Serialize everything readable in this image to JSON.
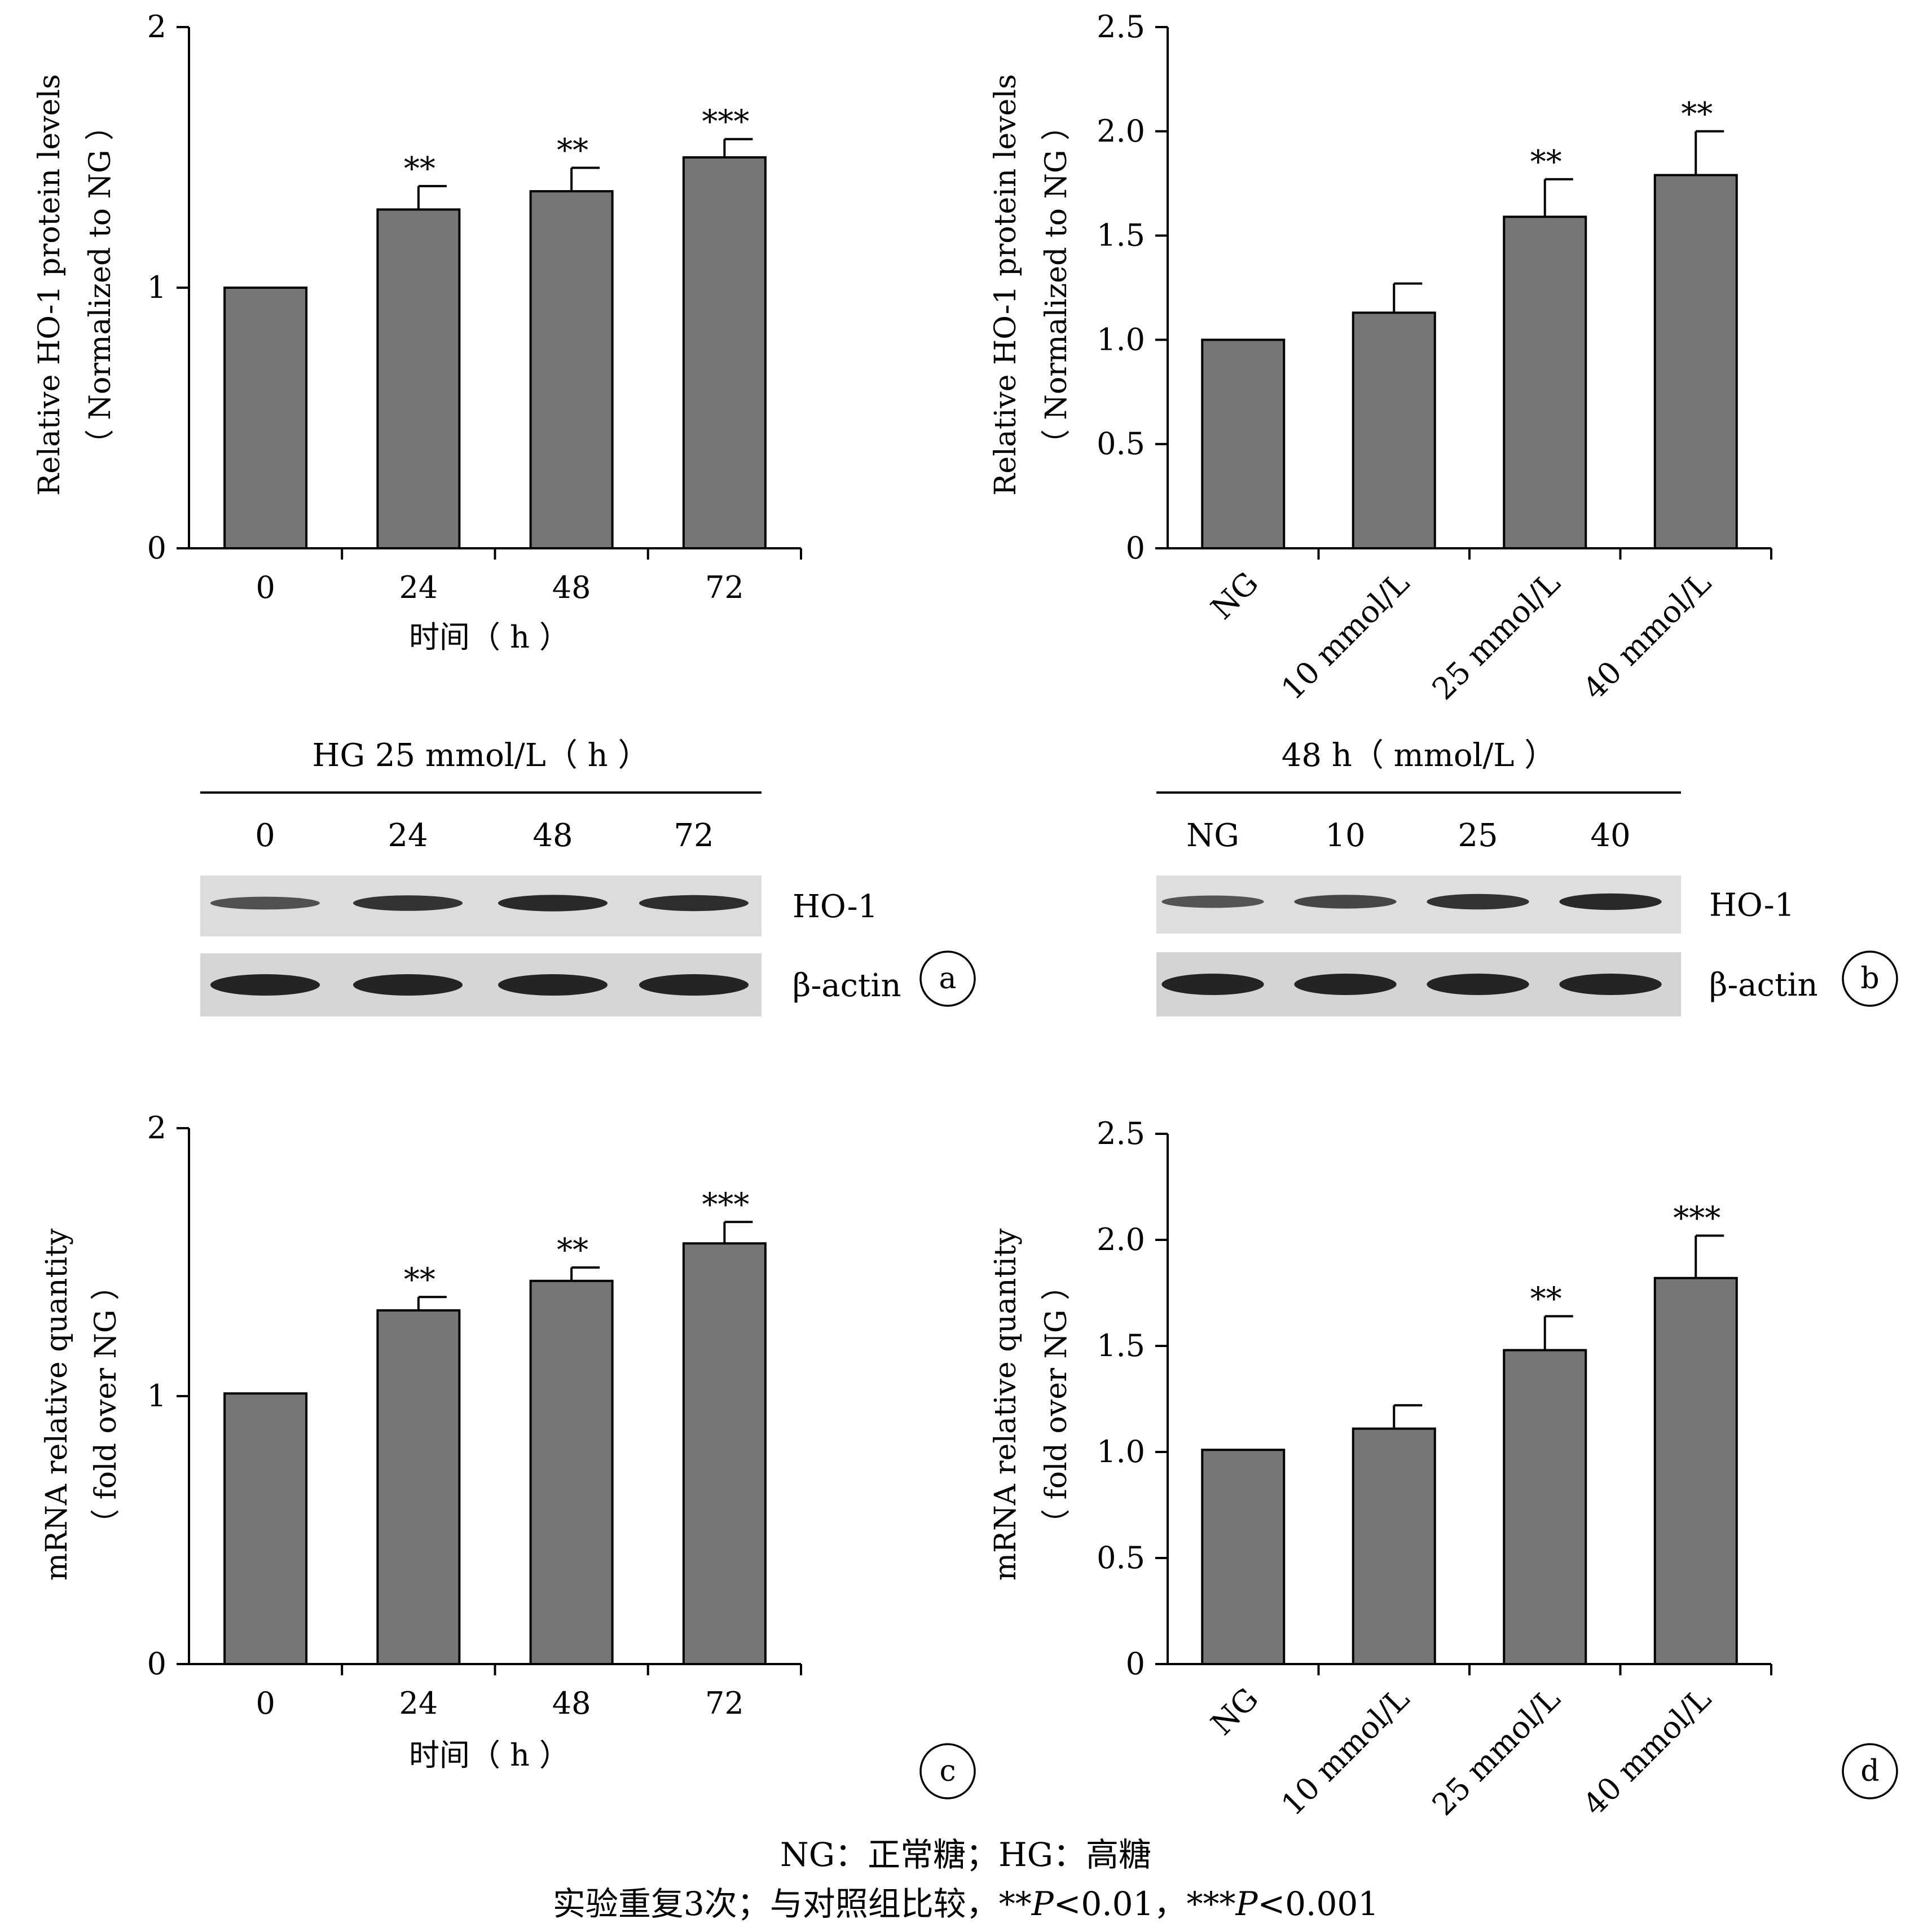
{
  "charts": [
    {
      "id": "a",
      "panel_label": "a",
      "type": "bar",
      "ylabel": [
        "Relative HO-1 protein levels",
        "（ Normalized to NG ）"
      ],
      "xlabel": "时间（ h ）",
      "categories": [
        "0",
        "24",
        "48",
        "72"
      ],
      "values": [
        1.0,
        1.3,
        1.37,
        1.5
      ],
      "errors": [
        0,
        0.09,
        0.09,
        0.07
      ],
      "stars": [
        "",
        "**",
        "**",
        "***"
      ],
      "ylim": [
        0,
        2
      ],
      "yticks": [
        "0",
        "1",
        "2"
      ],
      "ytick_values": [
        0,
        1,
        2
      ],
      "rotate_x": false
    },
    {
      "id": "b",
      "panel_label": "b",
      "type": "bar",
      "ylabel": [
        "Relative HO-1 protein levels",
        "（ Normalized to NG ）"
      ],
      "xlabel": "",
      "categories": [
        "NG",
        "10 mmol/L",
        "25 mmol/L",
        "40 mmol/L"
      ],
      "values": [
        1.0,
        1.13,
        1.59,
        1.79
      ],
      "errors": [
        0,
        0.14,
        0.18,
        0.21
      ],
      "stars": [
        "",
        "",
        "**",
        "**"
      ],
      "ylim": [
        0,
        2.5
      ],
      "yticks": [
        "0",
        "0.5",
        "1.0",
        "1.5",
        "2.0",
        "2.5"
      ],
      "ytick_values": [
        0,
        0.5,
        1.0,
        1.5,
        2.0,
        2.5
      ],
      "rotate_x": true
    },
    {
      "id": "c",
      "panel_label": "c",
      "type": "bar",
      "ylabel": [
        "mRNA relative quantity",
        "（ fold over NG ）"
      ],
      "xlabel": "时间（ h ）",
      "categories": [
        "0",
        "24",
        "48",
        "72"
      ],
      "values": [
        1.01,
        1.32,
        1.43,
        1.57
      ],
      "errors": [
        0,
        0.05,
        0.05,
        0.08
      ],
      "stars": [
        "",
        "**",
        "**",
        "***"
      ],
      "ylim": [
        0,
        2
      ],
      "yticks": [
        "0",
        "1",
        "2"
      ],
      "ytick_values": [
        0,
        1,
        2
      ],
      "rotate_x": false
    },
    {
      "id": "d",
      "panel_label": "d",
      "type": "bar",
      "ylabel": [
        "mRNA relative quantity",
        "（ fold over NG ）"
      ],
      "xlabel": "",
      "categories": [
        "NG",
        "10 mmol/L",
        "25 mmol/L",
        "40 mmol/L"
      ],
      "values": [
        1.01,
        1.11,
        1.48,
        1.82
      ],
      "errors": [
        0,
        0.11,
        0.16,
        0.2
      ],
      "stars": [
        "",
        "",
        "**",
        "***"
      ],
      "ylim": [
        0,
        2.5
      ],
      "yticks": [
        "0",
        "0.5",
        "1.0",
        "1.5",
        "2.0",
        "2.5"
      ],
      "ytick_values": [
        0,
        0.5,
        1.0,
        1.5,
        2.0,
        2.5
      ],
      "rotate_x": true
    }
  ],
  "blots": [
    {
      "id": "a",
      "header": "HG 25 mmol/L（ h ）",
      "lanes": [
        "0",
        "24",
        "48",
        "72"
      ],
      "rows": [
        "HO-1",
        "β-actin"
      ]
    },
    {
      "id": "b",
      "header": "48 h（ mmol/L ）",
      "lanes": [
        "NG",
        "10",
        "25",
        "40"
      ],
      "rows": [
        "HO-1",
        "β-actin"
      ]
    }
  ],
  "caption": {
    "line1": "NG：正常糖；HG：高糖",
    "line2_prefix": "实验重复3次；与对照组比较，**",
    "p1_italic": "P",
    "p1_rest": "<0.01，***",
    "p2_italic": "P",
    "p2_rest": "<0.001"
  },
  "colors": {
    "bar": "#767676",
    "bar_edge": "#000000",
    "axis": "#000000"
  }
}
